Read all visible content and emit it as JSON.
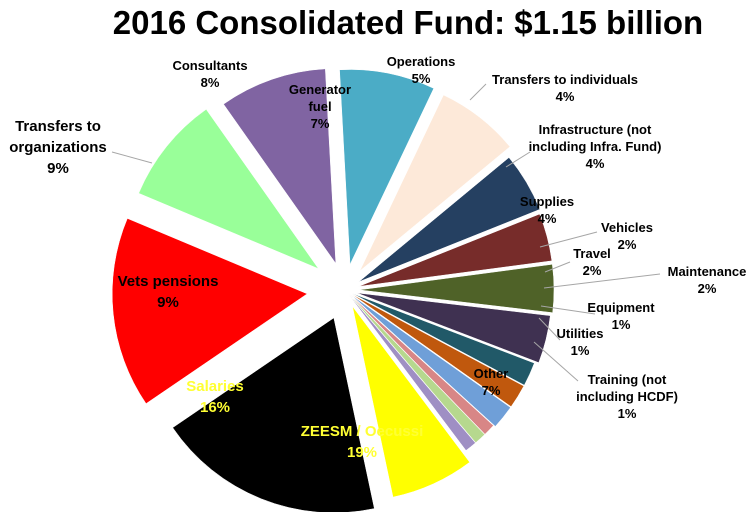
{
  "chart_data": {
    "type": "pie",
    "title": "2016 Consolidated Fund: $1.15 billion",
    "slices": [
      {
        "label": "ZEESM / Oecussi",
        "value": 19,
        "percent_label": "19%",
        "color": "#000000"
      },
      {
        "label": "Salaries",
        "value": 16,
        "percent_label": "16%",
        "color": "#ff0000"
      },
      {
        "label": "Vets pensions",
        "value": 9,
        "percent_label": "9%",
        "color": "#99ff99"
      },
      {
        "label": "Transfers to organizations",
        "value": 9,
        "percent_label": "9%",
        "color": "#8064a2"
      },
      {
        "label": "Consultants",
        "value": 8,
        "percent_label": "8%",
        "color": "#4bacc6"
      },
      {
        "label": "Generator fuel",
        "value": 7,
        "percent_label": "7%",
        "color": "#fde9d9"
      },
      {
        "label": "Operations",
        "value": 5,
        "percent_label": "5%",
        "color": "#254061"
      },
      {
        "label": "Transfers to individuals",
        "value": 4,
        "percent_label": "4%",
        "color": "#772c2a"
      },
      {
        "label": "Infrastructure (not including Infra. Fund)",
        "value": 4,
        "percent_label": "4%",
        "color": "#4f6228"
      },
      {
        "label": "Supplies",
        "value": 4,
        "percent_label": "4%",
        "color": "#3f3151"
      },
      {
        "label": "Vehicles",
        "value": 2,
        "percent_label": "2%",
        "color": "#215968"
      },
      {
        "label": "Travel",
        "value": 2,
        "percent_label": "2%",
        "color": "#c0580d"
      },
      {
        "label": "Maintenance",
        "value": 2,
        "percent_label": "2%",
        "color": "#6f9fd8"
      },
      {
        "label": "Equipment",
        "value": 1,
        "percent_label": "1%",
        "color": "#d88686"
      },
      {
        "label": "Utilities",
        "value": 1,
        "percent_label": "1%",
        "color": "#b6d88e"
      },
      {
        "label": "Training (not including HCDF)",
        "value": 1,
        "percent_label": "1%",
        "color": "#9f8fc4"
      },
      {
        "label": "Other",
        "value": 7,
        "percent_label": "7%",
        "color": "#ffff00"
      }
    ]
  }
}
